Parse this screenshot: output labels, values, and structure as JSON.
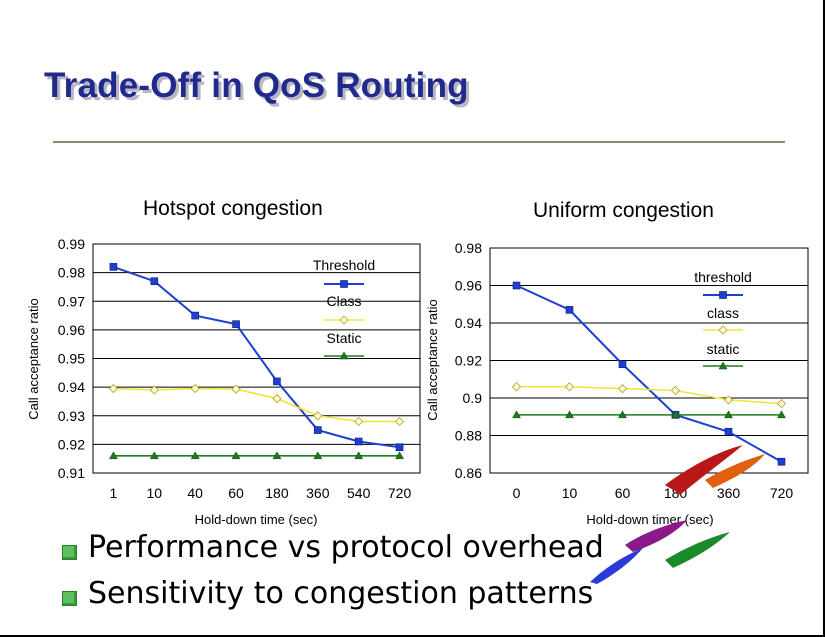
{
  "slide": {
    "title": "Trade-Off in QoS Routing",
    "bullets": [
      "Performance vs protocol overhead",
      "Sensitivity to congestion patterns"
    ],
    "bullet_color": "#5cc15c",
    "title_color": "#1f2a8c"
  },
  "chart_data": [
    {
      "type": "line",
      "title": "Hotspot congestion",
      "xlabel": "Hold-down time (sec)",
      "ylabel": "Call acceptance ratio",
      "categories": [
        "1",
        "10",
        "40",
        "60",
        "180",
        "360",
        "540",
        "720"
      ],
      "ylim": [
        0.91,
        0.99
      ],
      "yticks": [
        "0.91",
        "0.92",
        "0.93",
        "0.94",
        "0.95",
        "0.96",
        "0.97",
        "0.98",
        "0.99"
      ],
      "grid": true,
      "legend_position": "top-right",
      "series": [
        {
          "name": "Threshold",
          "color": "#1f3fd0",
          "marker": "square",
          "values": [
            0.982,
            0.977,
            0.965,
            0.962,
            0.942,
            0.925,
            0.921,
            0.919
          ]
        },
        {
          "name": "Class",
          "color": "#f0e63a",
          "marker": "diamond",
          "values": [
            0.9395,
            0.939,
            0.9395,
            0.9393,
            0.936,
            0.93,
            0.928,
            0.928
          ]
        },
        {
          "name": "Static",
          "color": "#1e7a1e",
          "marker": "triangle",
          "values": [
            0.916,
            0.916,
            0.916,
            0.916,
            0.916,
            0.916,
            0.916,
            0.916
          ]
        }
      ]
    },
    {
      "type": "line",
      "title": "Uniform congestion",
      "xlabel": "Hold-down timer (sec)",
      "ylabel": "Call acceptance ratio",
      "categories": [
        "0",
        "10",
        "60",
        "180",
        "360",
        "720"
      ],
      "ylim": [
        0.86,
        0.98
      ],
      "yticks": [
        "0.86",
        "0.88",
        "0.9",
        "0.92",
        "0.94",
        "0.96",
        "0.98"
      ],
      "grid": true,
      "legend_position": "top-right",
      "series": [
        {
          "name": "threshold",
          "color": "#1f3fd0",
          "marker": "square",
          "values": [
            0.96,
            0.947,
            0.918,
            0.891,
            0.882,
            0.866
          ]
        },
        {
          "name": "class",
          "color": "#f0e63a",
          "marker": "diamond",
          "values": [
            0.906,
            0.906,
            0.905,
            0.904,
            0.899,
            0.897
          ]
        },
        {
          "name": "static",
          "color": "#1e7a1e",
          "marker": "triangle",
          "values": [
            0.891,
            0.891,
            0.891,
            0.891,
            0.891,
            0.891
          ]
        }
      ]
    }
  ]
}
